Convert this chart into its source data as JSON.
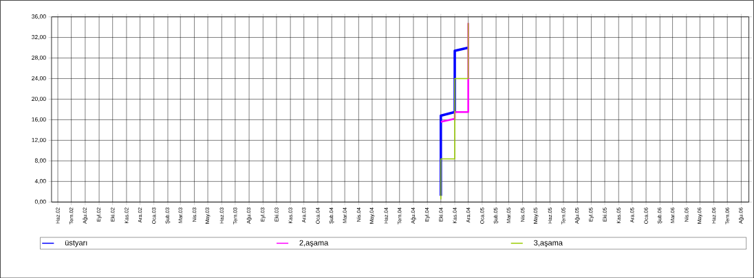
{
  "chart_data": {
    "type": "line",
    "xlim": [
      "2002-06-01",
      "2006-09-01"
    ],
    "xticks": [
      {
        "value": "2002-06-15",
        "label": "Haz.02"
      },
      {
        "value": "2002-07-15",
        "label": "Tem.02"
      },
      {
        "value": "2002-08-15",
        "label": "Ağu.02"
      },
      {
        "value": "2002-09-15",
        "label": "Eyl.02"
      },
      {
        "value": "2002-10-15",
        "label": "Eki.02"
      },
      {
        "value": "2002-11-15",
        "label": "Kas.02"
      },
      {
        "value": "2002-12-15",
        "label": "Ara.02"
      },
      {
        "value": "2003-01-15",
        "label": "Oca.03"
      },
      {
        "value": "2003-02-15",
        "label": "Şub.03"
      },
      {
        "value": "2003-03-15",
        "label": "Mar.03"
      },
      {
        "value": "2003-04-15",
        "label": "Nis.03"
      },
      {
        "value": "2003-05-15",
        "label": "May.03"
      },
      {
        "value": "2003-06-15",
        "label": "Haz.03"
      },
      {
        "value": "2003-07-15",
        "label": "Tem.03"
      },
      {
        "value": "2003-08-15",
        "label": "Ağu.03"
      },
      {
        "value": "2003-09-15",
        "label": "Eyl.03"
      },
      {
        "value": "2003-10-15",
        "label": "Eki.03"
      },
      {
        "value": "2003-11-15",
        "label": "Kas.03"
      },
      {
        "value": "2003-12-15",
        "label": "Ara.03"
      },
      {
        "value": "2004-01-15",
        "label": "Oca.04"
      },
      {
        "value": "2004-02-15",
        "label": "Şub.04"
      },
      {
        "value": "2004-03-15",
        "label": "Mar.04"
      },
      {
        "value": "2004-04-15",
        "label": "Nis.04"
      },
      {
        "value": "2004-05-15",
        "label": "May.04"
      },
      {
        "value": "2004-06-15",
        "label": "Haz.04"
      },
      {
        "value": "2004-07-15",
        "label": "Tem.04"
      },
      {
        "value": "2004-08-15",
        "label": "Ağu.04"
      },
      {
        "value": "2004-09-15",
        "label": "Eyl.04"
      },
      {
        "value": "2004-10-15",
        "label": "Eki.04"
      },
      {
        "value": "2004-11-15",
        "label": "Kas.04"
      },
      {
        "value": "2004-12-15",
        "label": "Ara.04"
      },
      {
        "value": "2005-01-15",
        "label": "Oca.05"
      },
      {
        "value": "2005-02-15",
        "label": "Şub.05"
      },
      {
        "value": "2005-03-15",
        "label": "Mar.05"
      },
      {
        "value": "2005-04-15",
        "label": "Nis.05"
      },
      {
        "value": "2005-05-15",
        "label": "May.05"
      },
      {
        "value": "2005-06-15",
        "label": "Haz.05"
      },
      {
        "value": "2005-07-15",
        "label": "Tem.05"
      },
      {
        "value": "2005-08-15",
        "label": "Ağu.05"
      },
      {
        "value": "2005-09-15",
        "label": "Eyl.05"
      },
      {
        "value": "2005-10-15",
        "label": "Eki.05"
      },
      {
        "value": "2005-11-15",
        "label": "Kas.05"
      },
      {
        "value": "2005-12-15",
        "label": "Ara.05"
      },
      {
        "value": "2006-01-15",
        "label": "Oca.06"
      },
      {
        "value": "2006-02-15",
        "label": "Şub.06"
      },
      {
        "value": "2006-03-15",
        "label": "Mar.06"
      },
      {
        "value": "2006-04-15",
        "label": "Nis.06"
      },
      {
        "value": "2006-05-15",
        "label": "May.06"
      },
      {
        "value": "2006-06-15",
        "label": "Haz.06"
      },
      {
        "value": "2006-07-15",
        "label": "Tem.06"
      },
      {
        "value": "2006-08-15",
        "label": "Ağu.06"
      }
    ],
    "ylim": [
      0,
      36
    ],
    "yticks": [
      {
        "value": 0,
        "label": "0,00"
      },
      {
        "value": 4,
        "label": "4,00"
      },
      {
        "value": 8,
        "label": "8,00"
      },
      {
        "value": 12,
        "label": "12,00"
      },
      {
        "value": 16,
        "label": "16,00"
      },
      {
        "value": 20,
        "label": "20,00"
      },
      {
        "value": 24,
        "label": "24,00"
      },
      {
        "value": 28,
        "label": "28,00"
      },
      {
        "value": 32,
        "label": "32,00"
      },
      {
        "value": 36,
        "label": "36,00"
      }
    ],
    "grid": true,
    "legend": "bottom",
    "marker": "none",
    "series": [
      {
        "name": "üstyarı",
        "color": "#0000ff",
        "x": [
          "2004-10-15",
          "2004-10-15",
          "2004-11-15",
          "2004-11-15",
          "2004-12-15"
        ],
        "values": [
          1.2,
          16.8,
          17.5,
          29.4,
          30.0
        ]
      },
      {
        "name": "2,aşama",
        "color": "#ff00ff",
        "x": [
          "2004-10-15",
          "2004-11-15",
          "2004-11-15",
          "2004-12-15",
          "2004-12-15"
        ],
        "values": [
          15.6,
          16.2,
          17.5,
          17.5,
          34.8
        ]
      },
      {
        "name": "3,aşama",
        "color": "#99cc00",
        "x": [
          "2004-10-15",
          "2004-10-15",
          "2004-11-15",
          "2004-11-15",
          "2004-12-15",
          "2004-12-15"
        ],
        "values": [
          0.5,
          8.4,
          8.4,
          24.0,
          24.0,
          34.8
        ]
      }
    ]
  }
}
